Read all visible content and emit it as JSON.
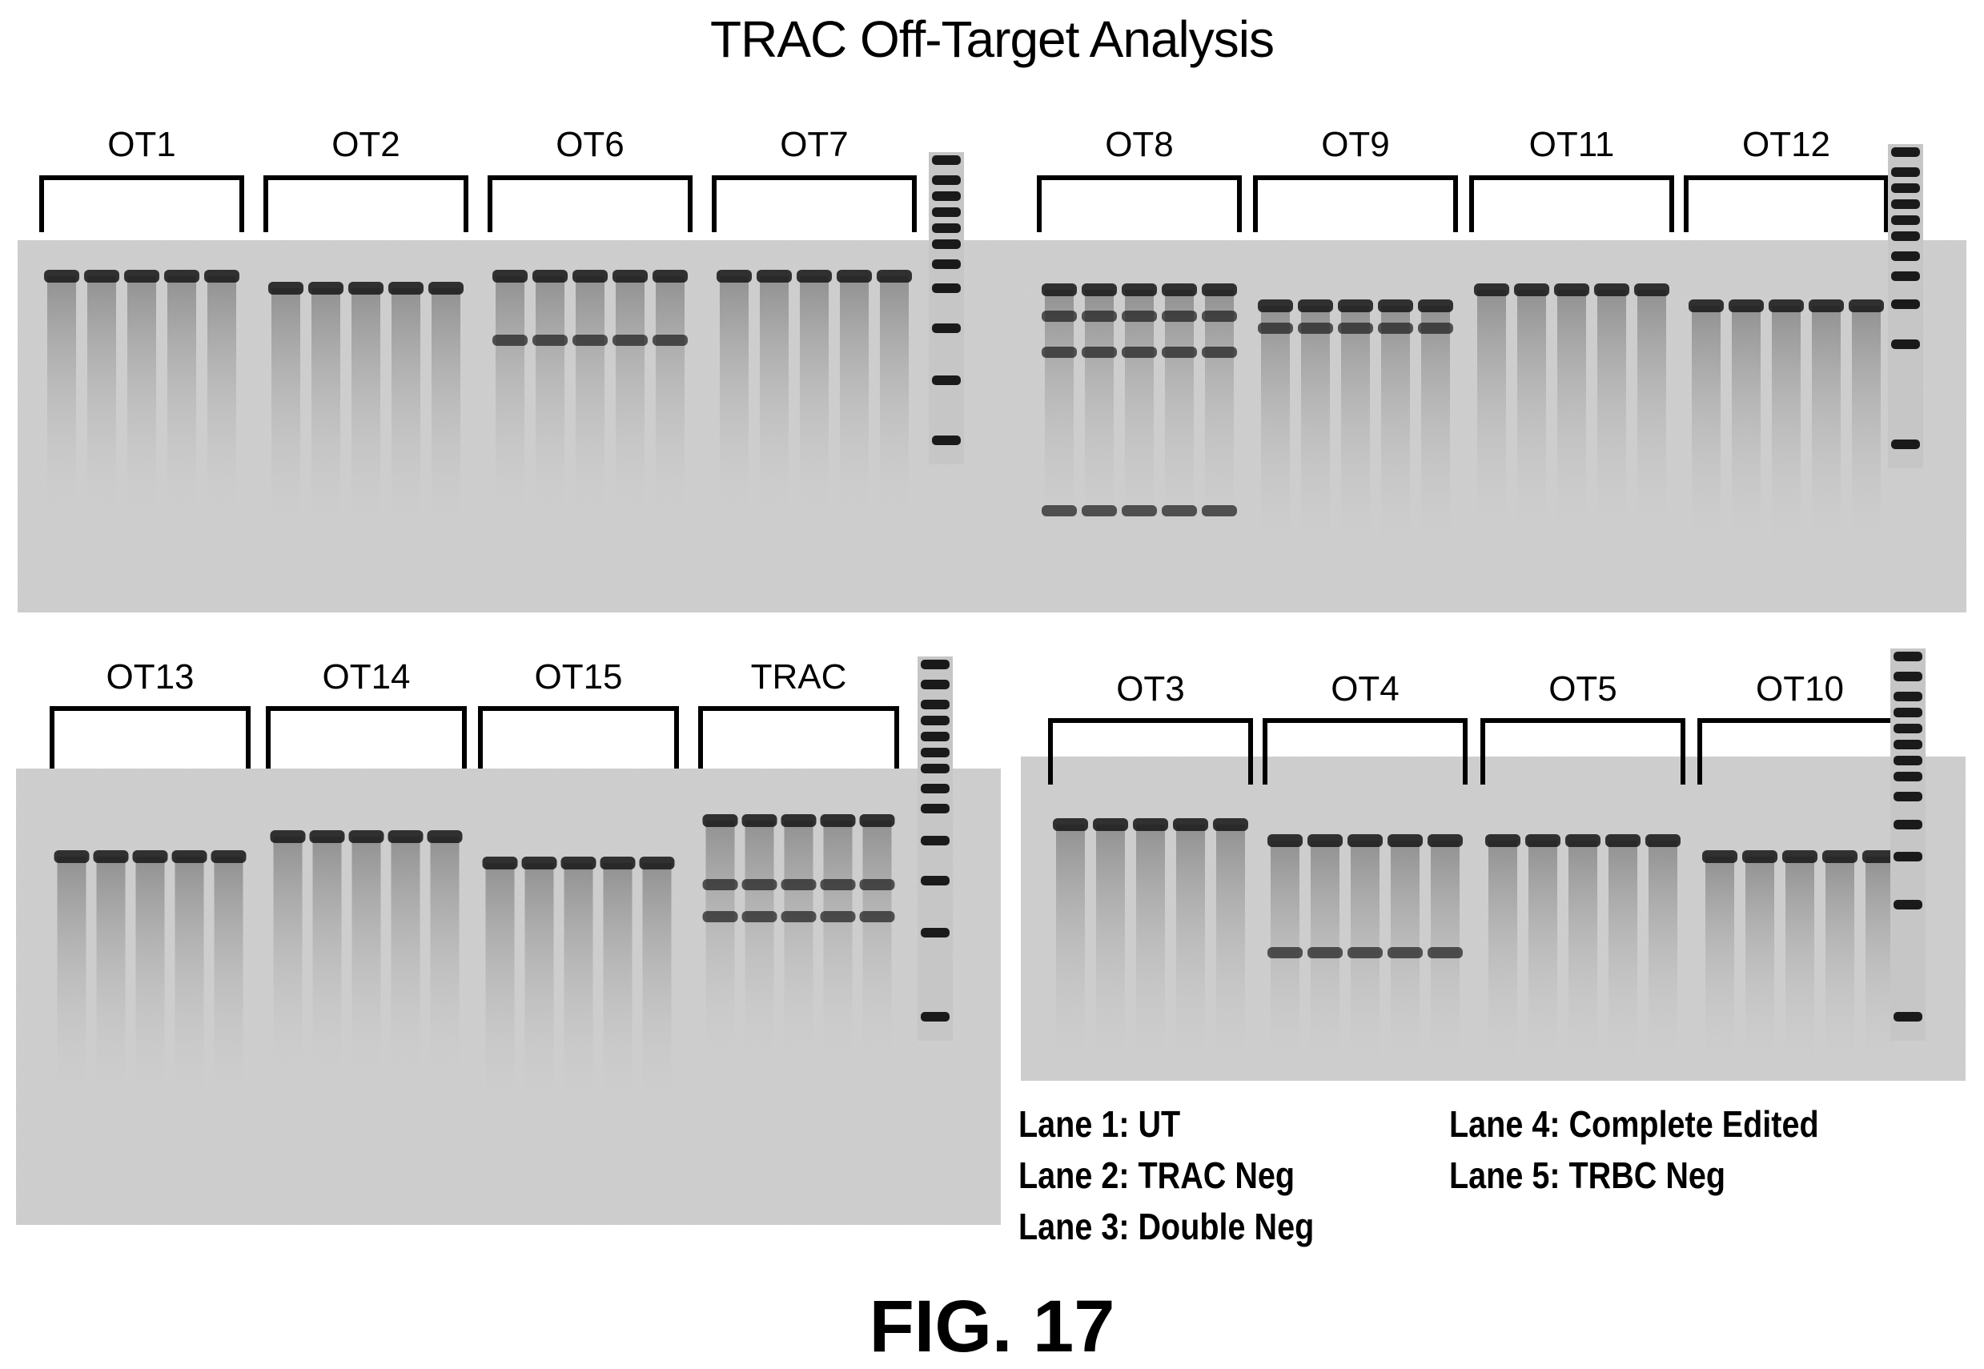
{
  "title": "TRAC Off-Target Analysis",
  "figure_label": "FIG. 17",
  "panels": [
    {
      "id": "top-left",
      "groups": [
        "OT1",
        "OT2",
        "OT6",
        "OT7"
      ]
    },
    {
      "id": "top-right",
      "groups": [
        "OT8",
        "OT9",
        "OT11",
        "OT12"
      ]
    },
    {
      "id": "bottom-left",
      "groups": [
        "OT13",
        "OT14",
        "OT15",
        "TRAC"
      ]
    },
    {
      "id": "bottom-right",
      "groups": [
        "OT3",
        "OT4",
        "OT5",
        "OT10"
      ]
    }
  ],
  "legend": [
    {
      "text": "Lane 1: UT"
    },
    {
      "text": "Lane 2: TRAC Neg"
    },
    {
      "text": "Lane 3: Double Neg"
    },
    {
      "text": "Lane 4: Complete Edited"
    },
    {
      "text": "Lane 5: TRBC Neg"
    }
  ],
  "colors": {
    "gel_background": "#cfcfcf",
    "band": "#1a1a1a",
    "ink": "#000000"
  }
}
